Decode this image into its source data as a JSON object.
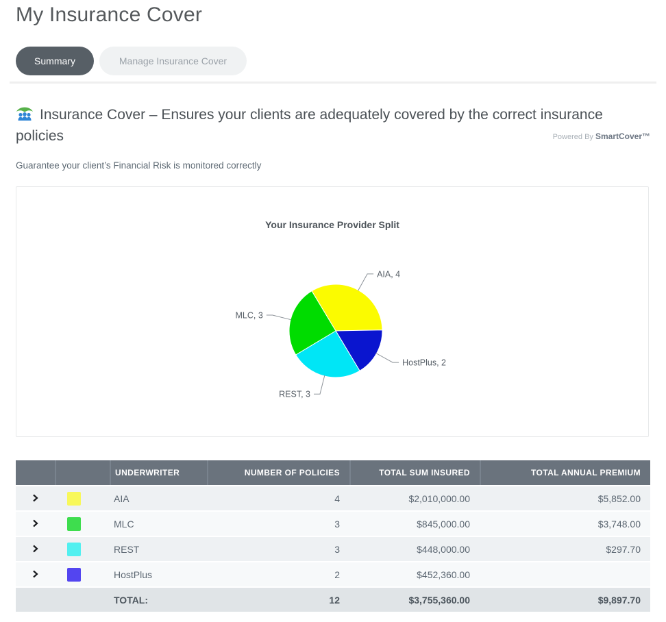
{
  "page": {
    "title": "My Insurance Cover"
  },
  "tabs": [
    {
      "label": "Summary",
      "active": true
    },
    {
      "label": "Manage Insurance Cover",
      "active": false
    }
  ],
  "heading": {
    "icon": "family-under-umbrella-icon",
    "text": "Insurance Cover – Ensures your clients are adequately covered by the correct insurance policies",
    "powered_by": "Powered By",
    "brand": "SmartCover™"
  },
  "subtitle": "Guarantee your client’s Financial Risk is monitored correctly",
  "chart_data": {
    "type": "pie",
    "title": "Your Insurance Provider Split",
    "total": 12,
    "start_angle_deg": -31,
    "direction": "clockwise",
    "label_format": "{label}, {value}",
    "legend_position": "outside-leader-lines",
    "slices": [
      {
        "label": "AIA",
        "value": 4,
        "color": "#FBFB00"
      },
      {
        "label": "HostPlus",
        "value": 2,
        "color": "#0A15CF"
      },
      {
        "label": "REST",
        "value": 3,
        "color": "#00E6F6"
      },
      {
        "label": "MLC",
        "value": 3,
        "color": "#00DC00"
      }
    ]
  },
  "table": {
    "headers": [
      "UNDERWRITER",
      "NUMBER OF POLICIES",
      "TOTAL SUM INSURED",
      "TOTAL ANNUAL PREMIUM"
    ],
    "rows": [
      {
        "underwriter": "AIA",
        "swatch": "#F8F85A",
        "policies": "4",
        "sum_insured": "$2,010,000.00",
        "premium": "$5,852.00"
      },
      {
        "underwriter": "MLC",
        "swatch": "#3EDD4E",
        "policies": "3",
        "sum_insured": "$845,000.00",
        "premium": "$3,748.00"
      },
      {
        "underwriter": "REST",
        "swatch": "#52F0F0",
        "policies": "3",
        "sum_insured": "$448,000.00",
        "premium": "$297.70"
      },
      {
        "underwriter": "HostPlus",
        "swatch": "#5345F0",
        "policies": "2",
        "sum_insured": "$452,360.00",
        "premium": ""
      }
    ],
    "total": {
      "label": "TOTAL:",
      "policies": "12",
      "sum_insured": "$3,755,360.00",
      "premium": "$9,897.70"
    }
  }
}
